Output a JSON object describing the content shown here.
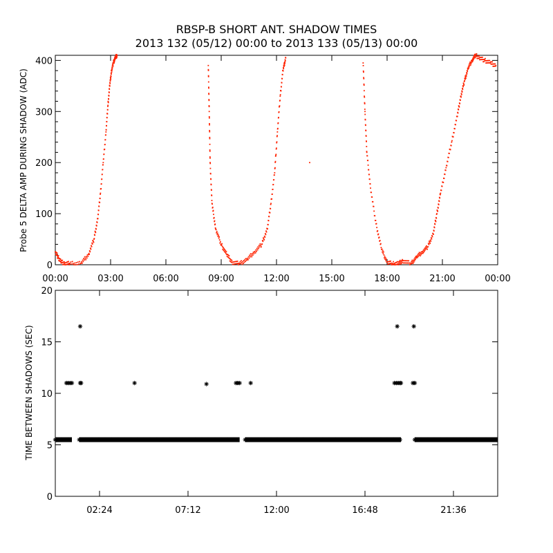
{
  "title_line1": "RBSP-B SHORT ANT. SHADOW TIMES",
  "title_line2": "2013 132 (05/12) 00:00 to 2013 133 (05/13) 00:00",
  "chart_data": [
    {
      "type": "scatter",
      "ylabel": "Probe 5 DELTA AMP DURING SHADOW (ADC)",
      "xlabel": "",
      "x_units": "hours since 2013-05-12 00:00",
      "xlim": [
        0,
        24
      ],
      "ylim": [
        0,
        410
      ],
      "xticks": [
        0,
        3,
        6,
        9,
        12,
        15,
        18,
        21,
        24
      ],
      "xtick_labels": [
        "00:00",
        "03:00",
        "06:00",
        "09:00",
        "12:00",
        "15:00",
        "18:00",
        "21:00",
        "00:00"
      ],
      "yticks": [
        0,
        100,
        200,
        300,
        400
      ],
      "ytick_labels": [
        "0",
        "100",
        "200",
        "300",
        "400"
      ],
      "marker_color": "#ff2200",
      "series": [
        {
          "x": [
            0.0,
            0.15,
            0.3,
            0.5,
            0.8,
            1.4,
            1.8,
            2.1,
            2.3,
            2.45,
            2.6,
            2.75,
            2.85,
            2.95,
            3.05,
            3.15,
            3.25,
            3.35,
            8.3,
            8.35,
            8.4,
            8.5,
            8.7,
            9.0,
            9.3,
            9.6,
            10.0,
            10.4,
            10.8,
            11.2,
            11.5,
            11.7,
            11.9,
            12.05,
            12.2,
            12.35,
            12.5,
            13.8,
            16.7,
            16.8,
            16.9,
            17.1,
            17.4,
            17.7,
            18.0,
            18.3,
            18.6,
            18.85,
            19.3,
            19.6,
            19.9,
            20.2,
            20.5,
            20.7,
            20.9,
            21.2,
            21.5,
            21.8,
            22.0,
            22.2,
            22.4,
            22.6,
            22.8,
            23.0,
            23.3,
            23.6,
            23.9
          ],
          "y": [
            25,
            15,
            6,
            3,
            2,
            3,
            20,
            50,
            90,
            140,
            200,
            260,
            310,
            350,
            380,
            395,
            405,
            410,
            390,
            300,
            200,
            120,
            70,
            40,
            20,
            5,
            2,
            10,
            25,
            40,
            70,
            120,
            180,
            260,
            330,
            380,
            405,
            200,
            395,
            300,
            220,
            150,
            80,
            30,
            5,
            2,
            2,
            8,
            2,
            15,
            25,
            35,
            60,
            100,
            140,
            190,
            240,
            290,
            330,
            360,
            385,
            400,
            410,
            405,
            400,
            395,
            390
          ]
        }
      ]
    },
    {
      "type": "scatter",
      "ylabel": "TIME BETWEEN SHADOWS (SEC)",
      "xlabel": "",
      "x_units": "hours since 2013-05-12 00:00",
      "xlim": [
        0,
        24
      ],
      "ylim": [
        0,
        20
      ],
      "xticks": [
        2.4,
        7.2,
        12,
        16.8,
        21.6
      ],
      "xtick_labels": [
        "02:24",
        "07:12",
        "12:00",
        "16:48",
        "21:36"
      ],
      "yticks": [
        0,
        5,
        10,
        15,
        20
      ],
      "ytick_labels": [
        "0",
        "5",
        "10",
        "15",
        "20"
      ],
      "marker": "*",
      "marker_color": "#000000",
      "baseline_value": 5.5,
      "baseline_segments": [
        [
          0.0,
          0.9
        ],
        [
          1.3,
          10.0
        ],
        [
          10.3,
          18.75
        ],
        [
          19.5,
          24.0
        ]
      ],
      "outliers": {
        "x": [
          0.6,
          0.7,
          0.8,
          0.9,
          1.35,
          1.4,
          1.35,
          4.3,
          8.2,
          9.8,
          9.9,
          10.0,
          10.6,
          18.4,
          18.5,
          18.6,
          18.7,
          18.75,
          18.55,
          19.4,
          19.5,
          19.45
        ],
        "y": [
          11.0,
          11.0,
          11.0,
          11.0,
          11.0,
          11.0,
          16.5,
          11.0,
          10.9,
          11.0,
          11.0,
          11.0,
          11.0,
          11.0,
          11.0,
          11.0,
          11.0,
          11.0,
          16.5,
          11.0,
          11.0,
          16.5
        ]
      }
    }
  ]
}
